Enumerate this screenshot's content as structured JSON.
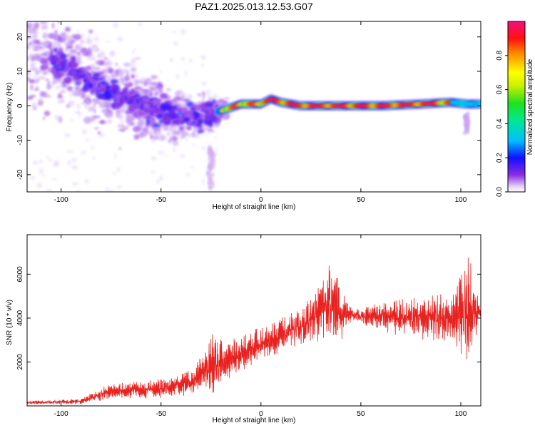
{
  "figure": {
    "title": "PAZ1.2025.013.12.53.G07"
  },
  "chart_data": [
    {
      "type": "heatmap",
      "xlabel": "Height of straight line (km)",
      "ylabel": "Frequency (Hz)",
      "xlim": [
        -117,
        110
      ],
      "ylim": [
        -25,
        24.5
      ],
      "xticks": [
        -100,
        -50,
        0,
        50,
        100
      ],
      "yticks": [
        -20,
        -10,
        0,
        10,
        20
      ],
      "xtick_labels": [
        "-100",
        "-50",
        "0",
        "50",
        "100"
      ],
      "ytick_labels": [
        "-20",
        "-10",
        "0",
        "10",
        "20"
      ],
      "colorbar": {
        "label": "Normalized spectral amplitude",
        "range": [
          0,
          1
        ],
        "ticks": [
          0.0,
          0.2,
          0.4,
          0.6,
          0.8
        ],
        "tick_labels": [
          "0.0",
          "0.2",
          "0.4",
          "0.6",
          "0.8"
        ],
        "colormap": "rainbow"
      },
      "ridge": [
        {
          "x": -110,
          "f": 15.0
        },
        {
          "x": -90,
          "f": 9.0
        },
        {
          "x": -75,
          "f": 4.0
        },
        {
          "x": -60,
          "f": 0.5
        },
        {
          "x": -45,
          "f": -2.5
        },
        {
          "x": -30,
          "f": -3.5
        },
        {
          "x": -25,
          "f": -2.0
        },
        {
          "x": -20,
          "f": -1.5
        },
        {
          "x": -10,
          "f": 0.5
        },
        {
          "x": 0,
          "f": 0.5
        },
        {
          "x": 5,
          "f": 2.0
        },
        {
          "x": 10,
          "f": 1.0
        },
        {
          "x": 20,
          "f": 0.0
        },
        {
          "x": 40,
          "f": 0.0
        },
        {
          "x": 60,
          "f": 0.0
        },
        {
          "x": 80,
          "f": 0.5
        },
        {
          "x": 95,
          "f": 1.0
        },
        {
          "x": 103,
          "f": 0.5
        },
        {
          "x": 110,
          "f": 0.5
        }
      ]
    },
    {
      "type": "line",
      "xlabel": "Height of straight line (km)",
      "ylabel": "SNR (10 * v/v)",
      "xlim": [
        -117,
        110
      ],
      "ylim": [
        0,
        7800
      ],
      "xticks": [
        -100,
        -50,
        0,
        50,
        100
      ],
      "yticks": [
        2000,
        4000,
        6000
      ],
      "xtick_labels": [
        "-100",
        "-50",
        "0",
        "50",
        "100"
      ],
      "ytick_labels": [
        "2000",
        "4000",
        "6000"
      ],
      "color": "#e8221f",
      "envelope": [
        {
          "x": -117,
          "v": 150
        },
        {
          "x": -90,
          "v": 200
        },
        {
          "x": -85,
          "v": 400
        },
        {
          "x": -75,
          "v": 650
        },
        {
          "x": -60,
          "v": 750
        },
        {
          "x": -45,
          "v": 800
        },
        {
          "x": -35,
          "v": 1100
        },
        {
          "x": -30,
          "v": 1600
        },
        {
          "x": -25,
          "v": 1900
        },
        {
          "x": -20,
          "v": 1900
        },
        {
          "x": -10,
          "v": 2400
        },
        {
          "x": 0,
          "v": 2800
        },
        {
          "x": 10,
          "v": 3200
        },
        {
          "x": 20,
          "v": 3600
        },
        {
          "x": 25,
          "v": 3900
        },
        {
          "x": 30,
          "v": 4300
        },
        {
          "x": 35,
          "v": 4600
        },
        {
          "x": 40,
          "v": 4250
        },
        {
          "x": 50,
          "v": 4100
        },
        {
          "x": 60,
          "v": 4100
        },
        {
          "x": 70,
          "v": 4000
        },
        {
          "x": 80,
          "v": 4050
        },
        {
          "x": 90,
          "v": 4000
        },
        {
          "x": 97,
          "v": 4000
        },
        {
          "x": 102,
          "v": 4200
        },
        {
          "x": 107,
          "v": 4200
        },
        {
          "x": 110,
          "v": 4200
        }
      ],
      "amplitude": [
        {
          "x": -117,
          "a": 60
        },
        {
          "x": -90,
          "a": 100
        },
        {
          "x": -80,
          "a": 250
        },
        {
          "x": -60,
          "a": 350
        },
        {
          "x": -40,
          "a": 400
        },
        {
          "x": -30,
          "a": 700
        },
        {
          "x": -24,
          "a": 1300
        },
        {
          "x": -15,
          "a": 700
        },
        {
          "x": 0,
          "a": 700
        },
        {
          "x": 20,
          "a": 700
        },
        {
          "x": 28,
          "a": 1100
        },
        {
          "x": 35,
          "a": 1700
        },
        {
          "x": 40,
          "a": 1200
        },
        {
          "x": 45,
          "a": 300
        },
        {
          "x": 50,
          "a": 250
        },
        {
          "x": 55,
          "a": 500
        },
        {
          "x": 70,
          "a": 700
        },
        {
          "x": 85,
          "a": 900
        },
        {
          "x": 95,
          "a": 900
        },
        {
          "x": 100,
          "a": 1900
        },
        {
          "x": 104,
          "a": 2300
        },
        {
          "x": 107,
          "a": 1300
        },
        {
          "x": 110,
          "a": 200
        }
      ]
    }
  ]
}
